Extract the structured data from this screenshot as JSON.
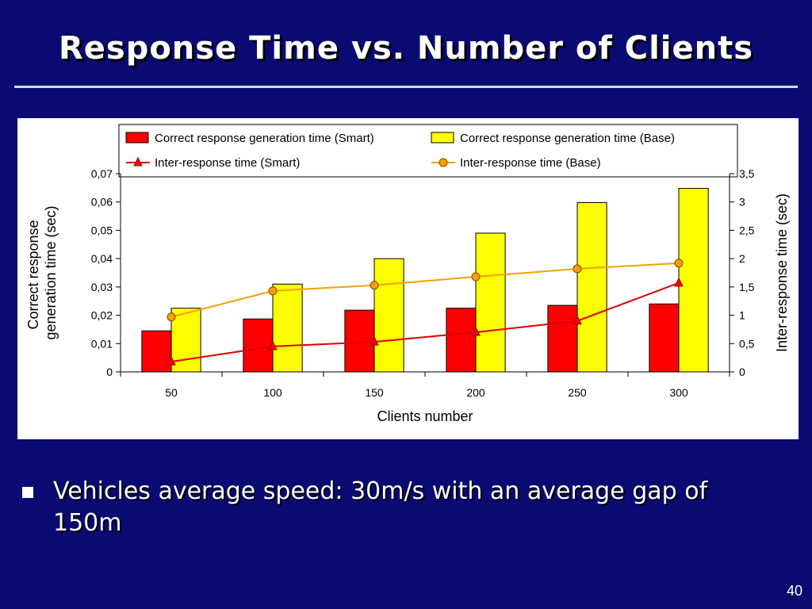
{
  "slide": {
    "title": "Response Time vs. Number of Clients",
    "bullet": "Vehicles average speed: 30m/s with an average  gap of 150m",
    "page_number": "40"
  },
  "chart_data": {
    "type": "bar+line",
    "categories": [
      "50",
      "100",
      "150",
      "200",
      "250",
      "300"
    ],
    "xlabel": "Clients number",
    "ylabel_left": "Correct response generation time (sec)",
    "ylabel_right": "Inter-response time (sec)",
    "ylim_left": [
      0,
      0.07
    ],
    "ylim_right": [
      0,
      3.5
    ],
    "yticks_left": [
      "0",
      "0,01",
      "0,02",
      "0,03",
      "0,04",
      "0,05",
      "0,06",
      "0,07"
    ],
    "yticks_right": [
      "0",
      "0,5",
      "1",
      "1,5",
      "2",
      "2,5",
      "3",
      "3,5"
    ],
    "grid": false,
    "legend_position": "top",
    "bars": [
      {
        "name": "Correct response generation time (Smart)",
        "color": "#ff0000",
        "values": [
          0.0145,
          0.0187,
          0.0218,
          0.0225,
          0.0235,
          0.024
        ]
      },
      {
        "name": "Correct response generation time (Base)",
        "color": "#ffff00",
        "values": [
          0.0225,
          0.031,
          0.04,
          0.049,
          0.0598,
          0.0648
        ]
      }
    ],
    "lines": [
      {
        "name": "Inter-response time (Smart)",
        "color": "#dd0000",
        "marker": "triangle",
        "values": [
          0.18,
          0.45,
          0.53,
          0.7,
          0.9,
          1.57
        ]
      },
      {
        "name": "Inter-response time (Base)",
        "color": "#f5a000",
        "marker": "circle",
        "values": [
          0.97,
          1.43,
          1.53,
          1.68,
          1.82,
          1.92
        ]
      }
    ]
  }
}
